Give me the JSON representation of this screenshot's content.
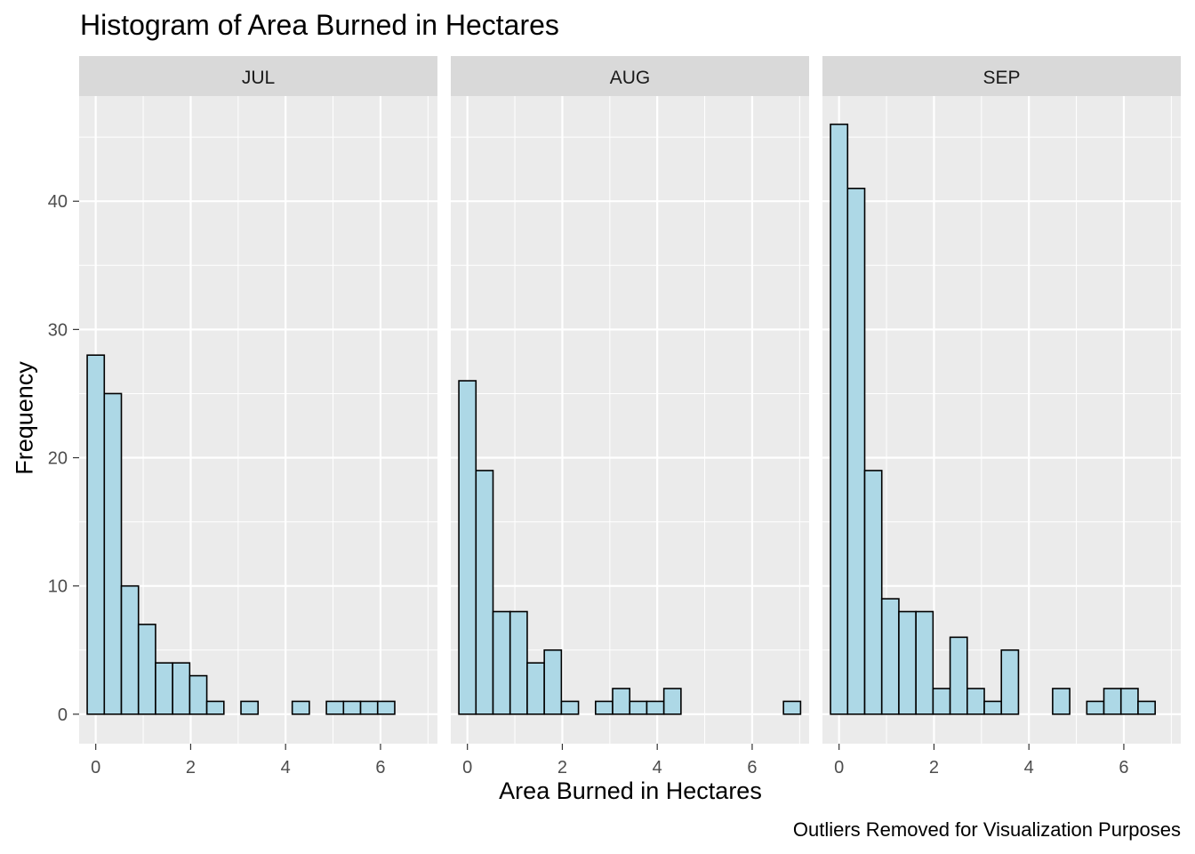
{
  "chart_data": {
    "type": "bar",
    "title": "Histogram of Area Burned in Hectares",
    "xlabel": "Area Burned in Hectares",
    "ylabel": "Frequency",
    "caption": "Outliers Removed for Visualization Purposes",
    "xlim": [
      -0.35,
      7.2
    ],
    "ylim": [
      -2.3,
      48.2
    ],
    "x_ticks": [
      0,
      2,
      4,
      6
    ],
    "y_ticks": [
      0,
      10,
      20,
      30,
      40
    ],
    "bin_width": 0.36,
    "first_bin_center": 0,
    "grid": true,
    "panels": [
      {
        "name": "JUL",
        "counts": [
          28,
          25,
          10,
          7,
          4,
          4,
          3,
          1,
          0,
          1,
          0,
          0,
          1,
          0,
          1,
          1,
          1,
          1,
          0,
          0
        ]
      },
      {
        "name": "AUG",
        "counts": [
          26,
          19,
          8,
          8,
          4,
          5,
          1,
          0,
          1,
          2,
          1,
          1,
          2,
          0,
          0,
          0,
          0,
          0,
          0,
          1
        ]
      },
      {
        "name": "SEP",
        "counts": [
          46,
          41,
          19,
          9,
          8,
          8,
          2,
          6,
          2,
          1,
          5,
          0,
          0,
          2,
          0,
          1,
          2,
          2,
          1,
          0
        ]
      }
    ],
    "colors": {
      "bar_fill": "#add8e6",
      "bar_stroke": "#000000",
      "panel_bg": "#ebebeb",
      "strip_bg": "#d9d9d9",
      "grid": "#ffffff"
    }
  }
}
